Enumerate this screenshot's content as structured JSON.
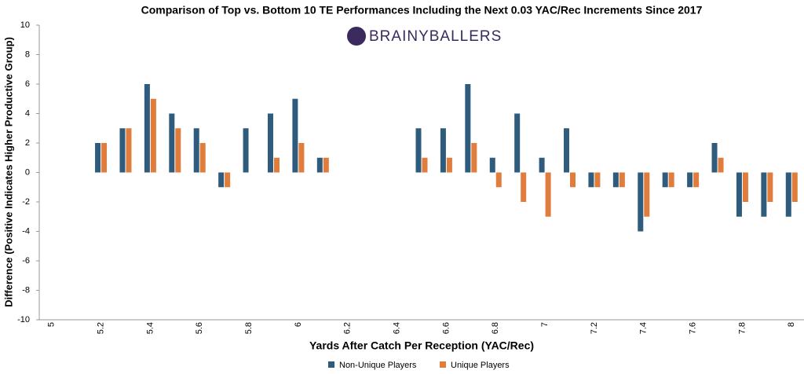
{
  "chart_data": {
    "type": "bar",
    "title": "Comparison of Top vs. Bottom 10 TE Performances Including the Next 0.03 YAC/Rec Increments Since 2017",
    "watermark": "BRAINYBALLERS",
    "x_label": "Yards After Catch Per Reception (YAC/Rec)",
    "y_label": "Difference (Positive Indicates Higher Productive Group)",
    "categories": [
      "5",
      null,
      "5.2",
      null,
      "5.4",
      null,
      "5.6",
      null,
      "5.8",
      null,
      "6",
      null,
      "6.2",
      null,
      "6.4",
      null,
      "6.6",
      null,
      "6.8",
      null,
      "7",
      null,
      "7.2",
      null,
      "7.4",
      null,
      "7.6",
      null,
      "7.8",
      null,
      "8"
    ],
    "series": [
      {
        "name": "Non-Unique Players",
        "color": "#2f5c7c",
        "values": [
          null,
          null,
          2,
          3,
          6,
          4,
          3,
          -1,
          3,
          4,
          5,
          1,
          null,
          null,
          null,
          3,
          3,
          6,
          1,
          4,
          1,
          3,
          -1,
          -1,
          -4,
          -1,
          -1,
          2,
          -3,
          -3,
          -3
        ]
      },
      {
        "name": "Unique Players",
        "color": "#e07d3c",
        "values": [
          null,
          null,
          2,
          3,
          5,
          3,
          2,
          -1,
          0,
          1,
          2,
          1,
          null,
          null,
          null,
          1,
          1,
          2,
          -1,
          -2,
          -3,
          -1,
          -1,
          -1,
          -3,
          -1,
          -1,
          1,
          -2,
          -2,
          -2
        ]
      }
    ],
    "ylim": [
      -10,
      10
    ],
    "yticks": [
      -10,
      -8,
      -6,
      -4,
      -2,
      0,
      2,
      4,
      6,
      8,
      10
    ],
    "grid": false
  }
}
